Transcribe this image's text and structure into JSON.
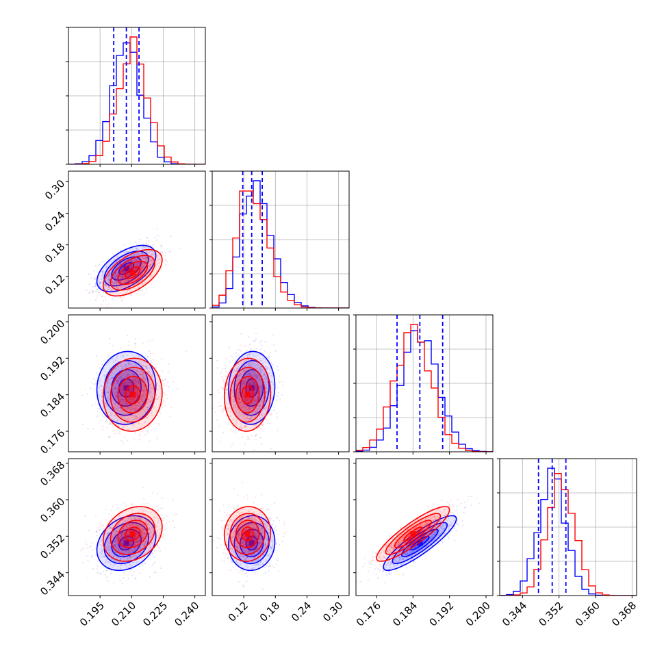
{
  "chart_data": {
    "type": "corner",
    "parameters": [
      {
        "range": [
          0.18,
          0.245
        ],
        "ticks": [
          "0.195",
          "0.210",
          "0.225",
          "0.240"
        ],
        "tick_values": [
          0.195,
          0.21,
          0.225,
          0.24
        ]
      },
      {
        "range": [
          0.06,
          0.32
        ],
        "ticks": [
          "0.12",
          "0.18",
          "0.24",
          "0.30"
        ],
        "tick_values": [
          0.12,
          0.18,
          0.24,
          0.3
        ]
      },
      {
        "range": [
          0.1715,
          0.2015
        ],
        "ticks": [
          "0.176",
          "0.184",
          "0.192",
          "0.200"
        ],
        "tick_values": [
          0.176,
          0.184,
          0.192,
          0.2
        ]
      },
      {
        "range": [
          0.339,
          0.369
        ],
        "ticks": [
          "0.344",
          "0.352",
          "0.360",
          "0.368"
        ],
        "tick_values": [
          0.344,
          0.352,
          0.36,
          0.368
        ]
      }
    ],
    "series": [
      {
        "color": "#0000ff",
        "mean": [
          0.2075,
          0.135,
          0.1855,
          0.3505
        ],
        "sd": [
          0.007,
          0.022,
          0.004,
          0.003
        ]
      },
      {
        "color": "#ff0000",
        "mean": [
          0.2105,
          0.127,
          0.184,
          0.3525
        ],
        "sd": [
          0.007,
          0.022,
          0.004,
          0.003
        ]
      }
    ],
    "correlations": [
      {
        "pair": [
          1,
          0
        ],
        "blue": 0.55,
        "red": 0.55
      },
      {
        "pair": [
          2,
          0
        ],
        "blue": 0.05,
        "red": 0.05
      },
      {
        "pair": [
          2,
          1
        ],
        "blue": 0.05,
        "red": 0.05
      },
      {
        "pair": [
          3,
          0
        ],
        "blue": 0.25,
        "red": 0.25
      },
      {
        "pair": [
          3,
          1
        ],
        "blue": 0.05,
        "red": 0.05
      },
      {
        "pair": [
          3,
          2
        ],
        "blue": 0.88,
        "red": 0.88
      }
    ],
    "quantile_lines": {
      "color": "#0000ff",
      "values": [
        [
          0.2015,
          0.2075,
          0.2135
        ],
        [
          0.118,
          0.135,
          0.155
        ],
        [
          0.1805,
          0.1855,
          0.1905
        ],
        [
          0.3475,
          0.3505,
          0.3535
        ]
      ]
    },
    "grid": true,
    "contour_levels": [
      "0.5sigma",
      "1sigma",
      "1.5sigma",
      "2sigma"
    ]
  }
}
